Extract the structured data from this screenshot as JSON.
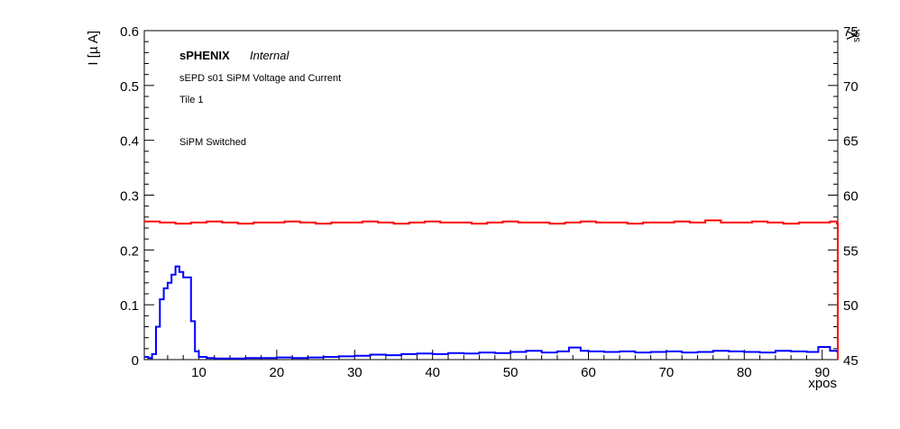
{
  "chart_data": {
    "type": "line",
    "annotations": {
      "experiment": "sPHENIX",
      "status": "Internal",
      "title": "sEPD s01 SiPM Voltage and Current",
      "tile": "Tile 1",
      "note": "SiPM Switched"
    },
    "xlabel": "xpos",
    "ylabel_left": "I [µ A]",
    "ylabel_right_main": "V",
    "ylabel_right_sub": "set",
    "xlim": [
      3,
      92
    ],
    "ylim_left": [
      0,
      0.6
    ],
    "ylim_right": [
      45,
      75
    ],
    "x_ticks": [
      "10",
      "20",
      "30",
      "40",
      "50",
      "60",
      "70",
      "80",
      "90"
    ],
    "y_ticks_left": [
      "0",
      "0.1",
      "0.2",
      "0.3",
      "0.4",
      "0.5",
      "0.6"
    ],
    "y_ticks_right": [
      "45",
      "50",
      "55",
      "60",
      "65",
      "70",
      "75"
    ],
    "bin_width": 0.5,
    "colors": {
      "current": "#0000ff",
      "voltage": "#ff0000"
    },
    "series": [
      {
        "axis": "left",
        "color": "#0000ff",
        "x": [
          3.0,
          3.5,
          4.0,
          4.5,
          5.0,
          5.5,
          6.0,
          6.5,
          7.0,
          7.5,
          8.0,
          8.5,
          9.0,
          9.5,
          10.0,
          11.0,
          12.0,
          14.0,
          16.0,
          18.0,
          20.0,
          22.0,
          24.0,
          26.0,
          28.0,
          30.0,
          32.0,
          34.0,
          36.0,
          38.0,
          40.0,
          42.0,
          44.0,
          46.0,
          48.0,
          50.0,
          52.0,
          54.0,
          56.0,
          57.5,
          59.0,
          60.0,
          62.0,
          64.0,
          66.0,
          68.0,
          70.0,
          72.0,
          74.0,
          76.0,
          78.0,
          80.0,
          82.0,
          84.0,
          86.0,
          88.0,
          89.5,
          91.0,
          91.9
        ],
        "values": [
          0.005,
          0.003,
          0.01,
          0.06,
          0.11,
          0.13,
          0.14,
          0.155,
          0.17,
          0.16,
          0.15,
          0.15,
          0.07,
          0.015,
          0.005,
          0.003,
          0.002,
          0.002,
          0.003,
          0.003,
          0.004,
          0.003,
          0.004,
          0.005,
          0.006,
          0.007,
          0.009,
          0.008,
          0.01,
          0.011,
          0.01,
          0.012,
          0.011,
          0.013,
          0.012,
          0.014,
          0.016,
          0.013,
          0.015,
          0.022,
          0.016,
          0.015,
          0.014,
          0.015,
          0.013,
          0.014,
          0.015,
          0.013,
          0.014,
          0.016,
          0.015,
          0.014,
          0.013,
          0.016,
          0.015,
          0.014,
          0.023,
          0.016,
          0.015
        ]
      },
      {
        "axis": "right",
        "color": "#ff0000",
        "x": [
          3.0,
          5.0,
          7.0,
          9.0,
          11.0,
          13.0,
          15.0,
          17.0,
          19.0,
          21.0,
          23.0,
          25.0,
          27.0,
          29.0,
          31.0,
          33.0,
          35.0,
          37.0,
          39.0,
          41.0,
          43.0,
          45.0,
          47.0,
          49.0,
          51.0,
          53.0,
          55.0,
          57.0,
          59.0,
          61.0,
          63.0,
          65.0,
          67.0,
          69.0,
          71.0,
          73.0,
          75.0,
          77.0,
          79.0,
          81.0,
          83.0,
          85.0,
          87.0,
          89.0,
          91.0,
          91.9
        ],
        "values": [
          57.6,
          57.5,
          57.4,
          57.5,
          57.6,
          57.5,
          57.4,
          57.5,
          57.5,
          57.6,
          57.5,
          57.4,
          57.5,
          57.5,
          57.6,
          57.5,
          57.4,
          57.5,
          57.6,
          57.5,
          57.5,
          57.4,
          57.5,
          57.6,
          57.5,
          57.5,
          57.4,
          57.5,
          57.6,
          57.5,
          57.5,
          57.4,
          57.5,
          57.5,
          57.6,
          57.5,
          57.7,
          57.5,
          57.5,
          57.6,
          57.5,
          57.4,
          57.5,
          57.5,
          57.6,
          57.4
        ]
      }
    ]
  }
}
